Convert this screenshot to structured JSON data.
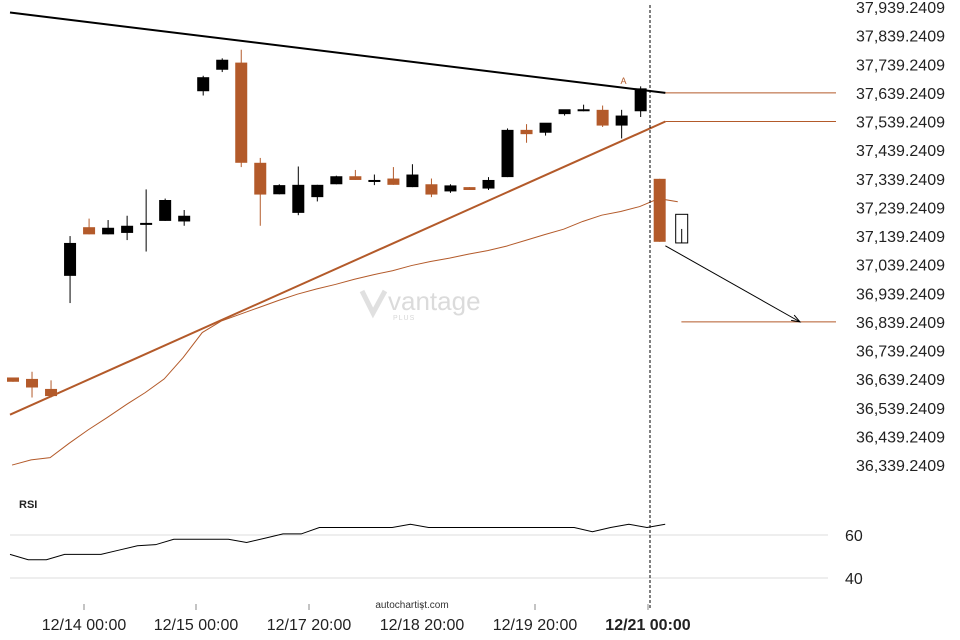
{
  "colors": {
    "bearish": "#b35a2a",
    "bullish": "#000000",
    "pattern_support": "#b35a2a",
    "pattern_resistance": "#000000",
    "moving_average": "#b35a2a",
    "rsi_line": "#000000",
    "level_line": "#b35a2a",
    "forecast_arrow": "#000000"
  },
  "chart_data": [
    {
      "type": "candlestick",
      "title": "",
      "x_tick_labels": [
        "12/14 00:00",
        "12/15 00:00",
        "12/17 20:00",
        "12/18 20:00",
        "12/19 20:00",
        "12/21 00:00"
      ],
      "highlighted_tick": "12/21 00:00",
      "y_tick_labels": [
        "37,939.2409",
        "37,839.2409",
        "37,739.2409",
        "37,639.2409",
        "37,539.2409",
        "37,439.2409",
        "37,339.2409",
        "37,239.2409",
        "37,139.2409",
        "37,039.2409",
        "36,939.2409",
        "36,839.2409",
        "36,739.2409",
        "36,639.2409",
        "36,539.2409",
        "36,439.2409",
        "36,339.2409"
      ],
      "ylim": [
        36339.2409,
        37939.2409
      ],
      "grid": false,
      "candles": [
        {
          "o": 36645,
          "h": 36645,
          "c": 36630,
          "l": 36630
        },
        {
          "o": 36640,
          "h": 36665,
          "c": 36610,
          "l": 36575
        },
        {
          "o": 36605,
          "h": 36635,
          "c": 36580,
          "l": 36575
        },
        {
          "o": 37000,
          "h": 37139,
          "c": 37115,
          "l": 36905
        },
        {
          "o": 37170,
          "h": 37200,
          "c": 37145,
          "l": 37145
        },
        {
          "o": 37145,
          "h": 37195,
          "c": 37168,
          "l": 37145
        },
        {
          "o": 37150,
          "h": 37210,
          "c": 37175,
          "l": 37125
        },
        {
          "o": 37185,
          "h": 37302,
          "c": 37185,
          "l": 37085
        },
        {
          "o": 37192,
          "h": 37270,
          "c": 37265,
          "l": 37192
        },
        {
          "o": 37190,
          "h": 37230,
          "c": 37210,
          "l": 37175
        },
        {
          "o": 37645,
          "h": 37699,
          "c": 37694,
          "l": 37630
        },
        {
          "o": 37720,
          "h": 37760,
          "c": 37755,
          "l": 37712
        },
        {
          "o": 37745,
          "h": 37790,
          "c": 37395,
          "l": 37380
        },
        {
          "o": 37395,
          "h": 37412,
          "c": 37284,
          "l": 37175
        },
        {
          "o": 37285,
          "h": 37320,
          "c": 37317,
          "l": 37285
        },
        {
          "o": 37220,
          "h": 37382,
          "c": 37318,
          "l": 37212
        },
        {
          "o": 37275,
          "h": 37318,
          "c": 37318,
          "l": 37260
        },
        {
          "o": 37320,
          "h": 37350,
          "c": 37348,
          "l": 37320
        },
        {
          "o": 37348,
          "h": 37370,
          "c": 37335,
          "l": 37335
        },
        {
          "o": 37335,
          "h": 37354,
          "c": 37335,
          "l": 37317
        },
        {
          "o": 37340,
          "h": 37380,
          "c": 37318,
          "l": 37318
        },
        {
          "o": 37310,
          "h": 37390,
          "c": 37354,
          "l": 37310
        },
        {
          "o": 37320,
          "h": 37340,
          "c": 37284,
          "l": 37275
        },
        {
          "o": 37295,
          "h": 37320,
          "c": 37316,
          "l": 37290
        },
        {
          "o": 37310,
          "h": 37310,
          "c": 37300,
          "l": 37300
        },
        {
          "o": 37305,
          "h": 37345,
          "c": 37335,
          "l": 37300
        },
        {
          "o": 37345,
          "h": 37515,
          "c": 37510,
          "l": 37345
        },
        {
          "o": 37510,
          "h": 37530,
          "c": 37495,
          "l": 37465
        },
        {
          "o": 37500,
          "h": 37530,
          "c": 37535,
          "l": 37490
        },
        {
          "o": 37565,
          "h": 37580,
          "c": 37582,
          "l": 37560
        },
        {
          "o": 37580,
          "h": 37598,
          "c": 37582,
          "l": 37575
        },
        {
          "o": 37580,
          "h": 37595,
          "c": 37525,
          "l": 37520
        },
        {
          "o": 37525,
          "h": 37580,
          "c": 37560,
          "l": 37480
        },
        {
          "o": 37575,
          "h": 37662,
          "c": 37655,
          "l": 37555
        },
        {
          "o": 37339,
          "h": 37339,
          "c": 37119,
          "l": 37119
        }
      ],
      "forecast_candle": {
        "o": 37215,
        "c": 37115
      },
      "moving_average": [
        36339,
        36357,
        36365,
        36415,
        36462,
        36505,
        36550,
        36592,
        36640,
        36715,
        36802,
        36842,
        36866,
        36890,
        36914,
        36936,
        36954,
        36970,
        36988,
        37004,
        37018,
        37036,
        37050,
        37062,
        37076,
        37088,
        37104,
        37124,
        37144,
        37163,
        37190,
        37212,
        37225,
        37242,
        37270,
        37259
      ],
      "pattern": {
        "resistance": {
          "start": [
            0,
            37920
          ],
          "end": [
            34.3,
            37639.2409
          ]
        },
        "support": {
          "start": [
            0,
            36515
          ],
          "end": [
            34.3,
            37539.2409
          ]
        },
        "marker": "A"
      },
      "levels": {
        "resistance_level": 37639.2409,
        "support_level": 37539.2409,
        "target_level": 36839.2409
      },
      "forecast_arrow": {
        "from": [
          34.3,
          37105
        ],
        "to": [
          41.3,
          36839.2409
        ]
      }
    },
    {
      "type": "line",
      "title": "RSI",
      "y_tick_labels": [
        "60",
        "40"
      ],
      "ylim": [
        30,
        70
      ],
      "reference_levels": [
        60,
        40
      ],
      "series": [
        {
          "values": [
            51,
            48.5,
            48.5,
            51,
            51,
            51,
            53,
            55,
            55.5,
            58,
            58,
            58,
            58,
            56.5,
            58.5,
            60.5,
            60.5,
            63.5,
            63.5,
            63.5,
            63.5,
            63.5,
            65,
            63.5,
            63.5,
            63.5,
            63.5,
            63.5,
            63.5,
            63.5,
            63.5,
            63.5,
            61.5,
            63.5,
            65,
            63.5,
            65
          ]
        }
      ]
    }
  ],
  "rsi_title": "RSI",
  "source_label": "autochartist.com",
  "watermark": {
    "brand": "vantage",
    "sub": "PLUS"
  }
}
